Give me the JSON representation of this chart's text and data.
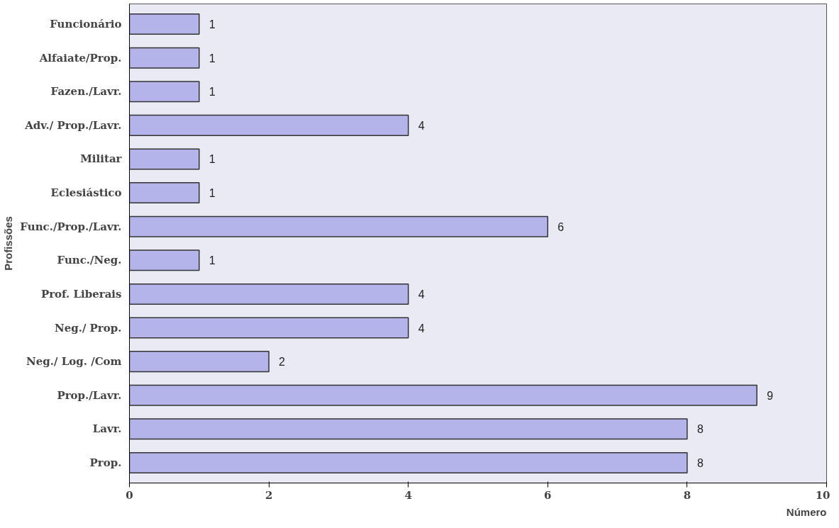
{
  "chart_data": {
    "type": "bar",
    "orientation": "horizontal",
    "xlabel": "Número",
    "ylabel": "Profissões",
    "categories": [
      "Funcionário",
      "Alfaiate/Prop.",
      "Fazen./Lavr.",
      "Adv./ Prop./Lavr.",
      "Militar",
      "Eclesiástico",
      "Func./Prop./Lavr.",
      "Func./Neg.",
      "Prof. Liberais",
      "Neg./ Prop.",
      "Neg./ Log. /Com",
      "Prop./Lavr.",
      "Lavr.",
      "Prop."
    ],
    "values": [
      1,
      1,
      1,
      4,
      1,
      1,
      6,
      1,
      4,
      4,
      2,
      9,
      8,
      8
    ],
    "color": "#b4b4ea",
    "xlim": [
      0,
      10
    ],
    "xticks": [
      0,
      2,
      4,
      6,
      8,
      10
    ],
    "data_labels": true,
    "grid": false
  }
}
